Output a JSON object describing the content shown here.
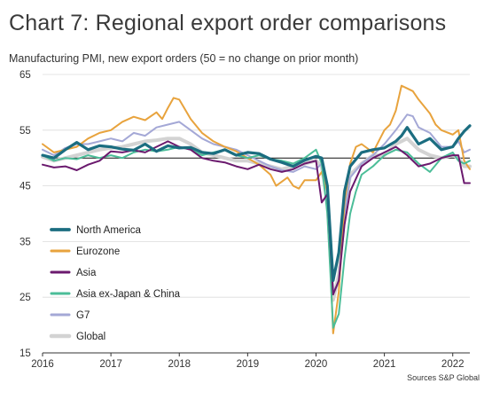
{
  "title": "Chart 7: Regional export order comparisons",
  "subtitle": "Manufacturing PMI, new export orders (50 = no change on prior month)",
  "source": "Sources S&P Global",
  "chart_data": {
    "type": "line",
    "xlabel": "",
    "ylabel": "",
    "x_ticks": [
      "2016",
      "2017",
      "2018",
      "2019",
      "2020",
      "2021",
      "2022"
    ],
    "y_ticks": [
      "15",
      "25",
      "35",
      "45",
      "55",
      "65"
    ],
    "ylim": [
      15,
      65
    ],
    "xlim": [
      "2016-01",
      "2022-04"
    ],
    "reference_line": 50,
    "grid": "horizontal",
    "legend_position": "left",
    "series": [
      {
        "name": "North America",
        "color": "#1b6d80",
        "stroke_width": 3.2,
        "points": [
          [
            "2016-01",
            50.5
          ],
          [
            "2016-03",
            50.0
          ],
          [
            "2016-05",
            51.5
          ],
          [
            "2016-07",
            52.8
          ],
          [
            "2016-09",
            51.5
          ],
          [
            "2016-11",
            52.2
          ],
          [
            "2017-01",
            52.0
          ],
          [
            "2017-03",
            51.6
          ],
          [
            "2017-05",
            51.4
          ],
          [
            "2017-07",
            52.5
          ],
          [
            "2017-09",
            51.2
          ],
          [
            "2017-11",
            52.2
          ],
          [
            "2018-01",
            51.8
          ],
          [
            "2018-03",
            51.9
          ],
          [
            "2018-05",
            51.0
          ],
          [
            "2018-07",
            50.8
          ],
          [
            "2018-09",
            51.5
          ],
          [
            "2018-11",
            50.5
          ],
          [
            "2019-01",
            51.0
          ],
          [
            "2019-03",
            50.8
          ],
          [
            "2019-05",
            49.8
          ],
          [
            "2019-07",
            49.2
          ],
          [
            "2019-09",
            48.5
          ],
          [
            "2019-11",
            49.6
          ],
          [
            "2020-01",
            50.3
          ],
          [
            "2020-02",
            50.0
          ],
          [
            "2020-03",
            45.0
          ],
          [
            "2020-04",
            28.0
          ],
          [
            "2020-05",
            33.0
          ],
          [
            "2020-06",
            44.0
          ],
          [
            "2020-07",
            48.5
          ],
          [
            "2020-09",
            51.0
          ],
          [
            "2020-11",
            51.5
          ],
          [
            "2021-01",
            51.8
          ],
          [
            "2021-03",
            53.0
          ],
          [
            "2021-04",
            54.0
          ],
          [
            "2021-05",
            55.5
          ],
          [
            "2021-07",
            52.5
          ],
          [
            "2021-09",
            53.5
          ],
          [
            "2021-11",
            51.5
          ],
          [
            "2022-01",
            52.0
          ],
          [
            "2022-02",
            53.5
          ],
          [
            "2022-03",
            54.8
          ],
          [
            "2022-04",
            55.8
          ]
        ]
      },
      {
        "name": "Eurozone",
        "color": "#e8a33d",
        "stroke_width": 2,
        "points": [
          [
            "2016-01",
            52.5
          ],
          [
            "2016-03",
            51.0
          ],
          [
            "2016-05",
            51.5
          ],
          [
            "2016-07",
            52.0
          ],
          [
            "2016-09",
            53.5
          ],
          [
            "2016-11",
            54.5
          ],
          [
            "2017-01",
            55.0
          ],
          [
            "2017-03",
            56.5
          ],
          [
            "2017-05",
            57.4
          ],
          [
            "2017-07",
            56.8
          ],
          [
            "2017-09",
            58.2
          ],
          [
            "2017-10",
            57.0
          ],
          [
            "2017-11",
            59.0
          ],
          [
            "2017-12",
            60.8
          ],
          [
            "2018-01",
            60.5
          ],
          [
            "2018-03",
            57.0
          ],
          [
            "2018-05",
            54.5
          ],
          [
            "2018-07",
            53.0
          ],
          [
            "2018-09",
            52.0
          ],
          [
            "2018-11",
            51.2
          ],
          [
            "2019-01",
            50.0
          ],
          [
            "2019-03",
            48.8
          ],
          [
            "2019-05",
            47.0
          ],
          [
            "2019-06",
            45.0
          ],
          [
            "2019-08",
            46.5
          ],
          [
            "2019-09",
            45.0
          ],
          [
            "2019-10",
            44.5
          ],
          [
            "2019-11",
            46.0
          ],
          [
            "2020-01",
            46.0
          ],
          [
            "2020-02",
            47.5
          ],
          [
            "2020-03",
            44.0
          ],
          [
            "2020-04",
            18.5
          ],
          [
            "2020-05",
            26.0
          ],
          [
            "2020-06",
            42.0
          ],
          [
            "2020-07",
            49.0
          ],
          [
            "2020-08",
            52.0
          ],
          [
            "2020-09",
            52.5
          ],
          [
            "2020-11",
            51.0
          ],
          [
            "2021-01",
            55.0
          ],
          [
            "2021-02",
            56.0
          ],
          [
            "2021-03",
            58.5
          ],
          [
            "2021-04",
            63.0
          ],
          [
            "2021-05",
            62.5
          ],
          [
            "2021-06",
            62.0
          ],
          [
            "2021-07",
            60.5
          ],
          [
            "2021-09",
            58.0
          ],
          [
            "2021-10",
            56.0
          ],
          [
            "2021-11",
            55.0
          ],
          [
            "2022-01",
            54.2
          ],
          [
            "2022-02",
            55.0
          ],
          [
            "2022-03",
            49.5
          ],
          [
            "2022-04",
            48.0
          ]
        ]
      },
      {
        "name": "Asia",
        "color": "#6b1a6e",
        "stroke_width": 2,
        "points": [
          [
            "2016-01",
            48.8
          ],
          [
            "2016-03",
            48.3
          ],
          [
            "2016-05",
            48.5
          ],
          [
            "2016-07",
            47.8
          ],
          [
            "2016-09",
            48.8
          ],
          [
            "2016-11",
            49.5
          ],
          [
            "2017-01",
            51.2
          ],
          [
            "2017-03",
            51.0
          ],
          [
            "2017-05",
            51.4
          ],
          [
            "2017-07",
            51.0
          ],
          [
            "2017-09",
            52.0
          ],
          [
            "2017-11",
            53.0
          ],
          [
            "2018-01",
            52.0
          ],
          [
            "2018-03",
            51.5
          ],
          [
            "2018-05",
            50.0
          ],
          [
            "2018-07",
            49.5
          ],
          [
            "2018-09",
            49.2
          ],
          [
            "2018-11",
            48.5
          ],
          [
            "2019-01",
            48.0
          ],
          [
            "2019-03",
            48.8
          ],
          [
            "2019-05",
            48.0
          ],
          [
            "2019-07",
            47.5
          ],
          [
            "2019-09",
            48.0
          ],
          [
            "2019-11",
            49.0
          ],
          [
            "2020-01",
            49.5
          ],
          [
            "2020-02",
            42.0
          ],
          [
            "2020-03",
            43.5
          ],
          [
            "2020-04",
            25.5
          ],
          [
            "2020-05",
            28.0
          ],
          [
            "2020-06",
            38.0
          ],
          [
            "2020-07",
            44.0
          ],
          [
            "2020-09",
            48.5
          ],
          [
            "2020-11",
            50.0
          ],
          [
            "2021-01",
            51.0
          ],
          [
            "2021-03",
            52.0
          ],
          [
            "2021-05",
            50.5
          ],
          [
            "2021-07",
            48.5
          ],
          [
            "2021-09",
            49.0
          ],
          [
            "2021-11",
            50.0
          ],
          [
            "2022-01",
            50.5
          ],
          [
            "2022-02",
            50.5
          ],
          [
            "2022-03",
            45.5
          ],
          [
            "2022-04",
            45.5
          ]
        ]
      },
      {
        "name": "Asia ex-Japan & China",
        "color": "#4bbd98",
        "stroke_width": 2,
        "points": [
          [
            "2016-01",
            50.5
          ],
          [
            "2016-03",
            49.5
          ],
          [
            "2016-05",
            50.0
          ],
          [
            "2016-07",
            49.8
          ],
          [
            "2016-09",
            50.5
          ],
          [
            "2016-11",
            50.0
          ],
          [
            "2017-01",
            50.5
          ],
          [
            "2017-03",
            50.0
          ],
          [
            "2017-05",
            51.0
          ],
          [
            "2017-07",
            51.5
          ],
          [
            "2017-09",
            51.2
          ],
          [
            "2017-11",
            51.5
          ],
          [
            "2018-01",
            52.0
          ],
          [
            "2018-03",
            51.5
          ],
          [
            "2018-05",
            50.5
          ],
          [
            "2018-07",
            51.0
          ],
          [
            "2018-09",
            51.5
          ],
          [
            "2018-11",
            50.5
          ],
          [
            "2019-01",
            50.0
          ],
          [
            "2019-03",
            50.5
          ],
          [
            "2019-05",
            49.8
          ],
          [
            "2019-07",
            49.5
          ],
          [
            "2019-09",
            49.0
          ],
          [
            "2019-11",
            50.0
          ],
          [
            "2020-01",
            51.5
          ],
          [
            "2020-02",
            49.0
          ],
          [
            "2020-03",
            40.0
          ],
          [
            "2020-04",
            19.5
          ],
          [
            "2020-05",
            22.0
          ],
          [
            "2020-06",
            32.0
          ],
          [
            "2020-07",
            40.0
          ],
          [
            "2020-08",
            44.0
          ],
          [
            "2020-09",
            47.0
          ],
          [
            "2020-11",
            48.5
          ],
          [
            "2021-01",
            50.5
          ],
          [
            "2021-03",
            51.5
          ],
          [
            "2021-05",
            51.0
          ],
          [
            "2021-07",
            49.0
          ],
          [
            "2021-09",
            47.5
          ],
          [
            "2021-11",
            50.0
          ],
          [
            "2022-01",
            51.0
          ],
          [
            "2022-02",
            49.5
          ],
          [
            "2022-03",
            49.0
          ],
          [
            "2022-04",
            49.5
          ]
        ]
      },
      {
        "name": "G7",
        "color": "#a4a8d6",
        "stroke_width": 2,
        "points": [
          [
            "2016-01",
            51.5
          ],
          [
            "2016-03",
            50.5
          ],
          [
            "2016-05",
            51.8
          ],
          [
            "2016-07",
            52.5
          ],
          [
            "2016-09",
            52.5
          ],
          [
            "2016-11",
            53.0
          ],
          [
            "2017-01",
            53.5
          ],
          [
            "2017-03",
            53.0
          ],
          [
            "2017-05",
            54.5
          ],
          [
            "2017-07",
            54.0
          ],
          [
            "2017-09",
            55.5
          ],
          [
            "2017-11",
            56.0
          ],
          [
            "2018-01",
            56.5
          ],
          [
            "2018-03",
            55.0
          ],
          [
            "2018-05",
            53.5
          ],
          [
            "2018-07",
            52.5
          ],
          [
            "2018-09",
            52.0
          ],
          [
            "2018-11",
            51.5
          ],
          [
            "2019-01",
            50.5
          ],
          [
            "2019-03",
            49.5
          ],
          [
            "2019-05",
            48.5
          ],
          [
            "2019-07",
            47.8
          ],
          [
            "2019-09",
            47.5
          ],
          [
            "2019-11",
            48.5
          ],
          [
            "2020-01",
            48.0
          ],
          [
            "2020-02",
            49.0
          ],
          [
            "2020-03",
            44.0
          ],
          [
            "2020-04",
            26.0
          ],
          [
            "2020-05",
            27.5
          ],
          [
            "2020-06",
            40.0
          ],
          [
            "2020-07",
            46.5
          ],
          [
            "2020-09",
            49.0
          ],
          [
            "2020-11",
            50.5
          ],
          [
            "2021-01",
            52.5
          ],
          [
            "2021-03",
            55.0
          ],
          [
            "2021-05",
            57.8
          ],
          [
            "2021-06",
            57.5
          ],
          [
            "2021-07",
            55.5
          ],
          [
            "2021-09",
            54.5
          ],
          [
            "2021-11",
            52.0
          ],
          [
            "2022-01",
            52.0
          ],
          [
            "2022-02",
            53.0
          ],
          [
            "2022-03",
            51.0
          ],
          [
            "2022-04",
            51.5
          ]
        ]
      },
      {
        "name": "Global",
        "color": "#d3d3d3",
        "stroke_width": 4,
        "points": [
          [
            "2016-01",
            50.2
          ],
          [
            "2016-03",
            49.5
          ],
          [
            "2016-05",
            50.0
          ],
          [
            "2016-07",
            50.5
          ],
          [
            "2016-09",
            51.0
          ],
          [
            "2016-11",
            51.5
          ],
          [
            "2017-01",
            51.8
          ],
          [
            "2017-03",
            52.0
          ],
          [
            "2017-05",
            52.5
          ],
          [
            "2017-07",
            53.0
          ],
          [
            "2017-09",
            53.2
          ],
          [
            "2017-11",
            53.5
          ],
          [
            "2018-01",
            53.5
          ],
          [
            "2018-03",
            52.5
          ],
          [
            "2018-05",
            51.0
          ],
          [
            "2018-07",
            50.5
          ],
          [
            "2018-09",
            50.0
          ],
          [
            "2018-11",
            49.5
          ],
          [
            "2019-01",
            49.5
          ],
          [
            "2019-03",
            49.0
          ],
          [
            "2019-05",
            48.5
          ],
          [
            "2019-07",
            48.0
          ],
          [
            "2019-09",
            48.5
          ],
          [
            "2019-11",
            49.0
          ],
          [
            "2020-01",
            49.5
          ],
          [
            "2020-02",
            48.5
          ],
          [
            "2020-03",
            42.0
          ],
          [
            "2020-04",
            24.5
          ],
          [
            "2020-05",
            29.0
          ],
          [
            "2020-06",
            40.0
          ],
          [
            "2020-07",
            47.0
          ],
          [
            "2020-09",
            49.0
          ],
          [
            "2020-11",
            50.5
          ],
          [
            "2021-01",
            50.5
          ],
          [
            "2021-03",
            52.5
          ],
          [
            "2021-05",
            53.5
          ],
          [
            "2021-07",
            51.5
          ],
          [
            "2021-09",
            50.5
          ],
          [
            "2021-11",
            50.0
          ],
          [
            "2022-01",
            50.5
          ],
          [
            "2022-02",
            50.0
          ],
          [
            "2022-03",
            48.5
          ],
          [
            "2022-04",
            48.5
          ]
        ]
      }
    ]
  }
}
